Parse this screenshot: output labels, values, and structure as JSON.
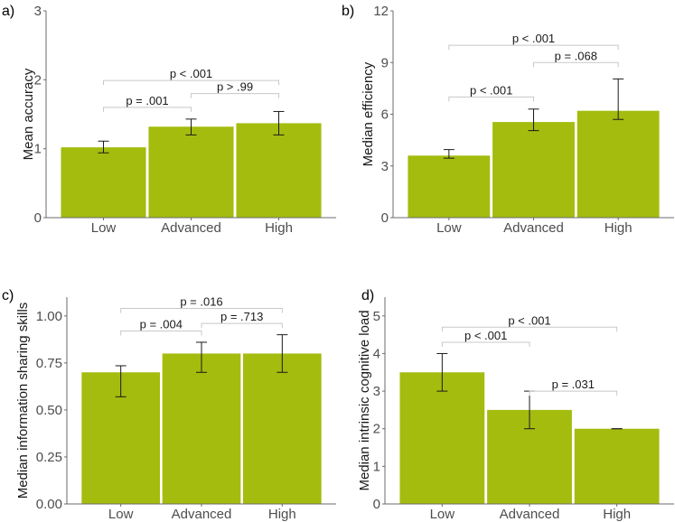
{
  "chart_data": [
    {
      "type": "bar",
      "panel_label": "a)",
      "title": "",
      "xlabel": "",
      "ylabel": "Mean accuracy",
      "categories": [
        "Low",
        "Advanced",
        "High"
      ],
      "values": [
        1.02,
        1.32,
        1.37
      ],
      "error_bars": [
        [
          0.94,
          1.11
        ],
        [
          1.2,
          1.43
        ],
        [
          1.2,
          1.54
        ]
      ],
      "ylim": [
        0,
        3
      ],
      "yticks": [
        0,
        1,
        2,
        3
      ],
      "ytick_labels": [
        "0",
        "1",
        "2",
        "3"
      ],
      "bar_color": "#A4BC0E",
      "grid": false,
      "comparisons": [
        {
          "from": 0,
          "to": 1,
          "label": "p = .001",
          "y": 1.6
        },
        {
          "from": 1,
          "to": 2,
          "label": "p > .99",
          "y": 1.8
        },
        {
          "from": 0,
          "to": 2,
          "label": "p < .001",
          "y": 1.99
        }
      ]
    },
    {
      "type": "bar",
      "panel_label": "b)",
      "title": "",
      "xlabel": "",
      "ylabel": "Median efficiency",
      "categories": [
        "Low",
        "Advanced",
        "High"
      ],
      "values": [
        3.6,
        5.55,
        6.2
      ],
      "error_bars": [
        [
          3.45,
          3.95
        ],
        [
          5.05,
          6.3
        ],
        [
          5.7,
          8.05
        ]
      ],
      "ylim": [
        0,
        12
      ],
      "yticks": [
        0,
        3,
        6,
        9,
        12
      ],
      "ytick_labels": [
        "0",
        "3",
        "6",
        "9",
        "12"
      ],
      "bar_color": "#A4BC0E",
      "grid": false,
      "comparisons": [
        {
          "from": 0,
          "to": 1,
          "label": "p < .001",
          "y": 7.0
        },
        {
          "from": 1,
          "to": 2,
          "label": "p = .068",
          "y": 9.0
        },
        {
          "from": 0,
          "to": 2,
          "label": "p < .001",
          "y": 10.0
        }
      ]
    },
    {
      "type": "bar",
      "panel_label": "c)",
      "title": "",
      "xlabel": "",
      "ylabel": "Median information sharing skills",
      "categories": [
        "Low",
        "Advanced",
        "High"
      ],
      "values": [
        0.7,
        0.8,
        0.8
      ],
      "error_bars": [
        [
          0.57,
          0.735
        ],
        [
          0.7,
          0.86
        ],
        [
          0.7,
          0.9
        ]
      ],
      "ylim": [
        0,
        1.1
      ],
      "yticks": [
        0,
        0.25,
        0.5,
        0.75,
        1.0
      ],
      "ytick_labels": [
        "0.00",
        "0.25",
        "0.50",
        "0.75",
        "1.00"
      ],
      "bar_color": "#A4BC0E",
      "grid": false,
      "comparisons": [
        {
          "from": 0,
          "to": 1,
          "label": "p = .004",
          "y": 0.92
        },
        {
          "from": 1,
          "to": 2,
          "label": "p = .713",
          "y": 0.96
        },
        {
          "from": 0,
          "to": 2,
          "label": "p = .016",
          "y": 1.04
        }
      ]
    },
    {
      "type": "bar",
      "panel_label": "d)",
      "title": "",
      "xlabel": "",
      "ylabel": "Median intrinsic cognitive load",
      "categories": [
        "Low",
        "Advanced",
        "High"
      ],
      "values": [
        3.5,
        2.5,
        2.0
      ],
      "error_bars": [
        [
          3.0,
          4.0
        ],
        [
          2.0,
          3.0
        ],
        [
          2.0,
          2.0
        ]
      ],
      "ylim": [
        0,
        5.5
      ],
      "yticks": [
        0,
        1,
        2,
        3,
        4,
        5
      ],
      "ytick_labels": [
        "0",
        "1",
        "2",
        "3",
        "4",
        "5"
      ],
      "bar_color": "#A4BC0E",
      "grid": false,
      "comparisons": [
        {
          "from": 0,
          "to": 1,
          "label": "p < .001",
          "y": 4.3
        },
        {
          "from": 1,
          "to": 2,
          "label": "p = .031",
          "y": 3.0
        },
        {
          "from": 0,
          "to": 2,
          "label": "p < .001",
          "y": 4.7
        }
      ]
    }
  ]
}
